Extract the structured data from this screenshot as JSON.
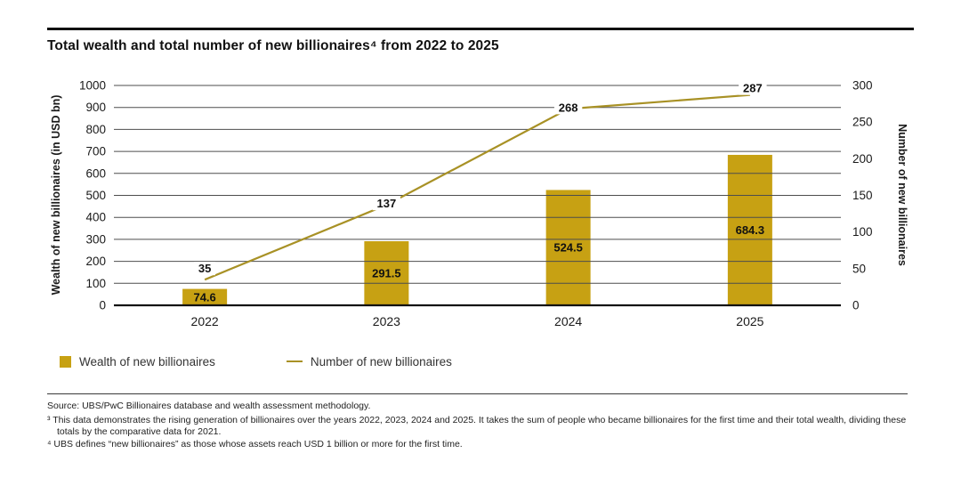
{
  "chart_data": {
    "type": "bar",
    "title": "Total wealth and total number of new billionaires⁴ from 2022 to 2025",
    "categories": [
      "2022",
      "2023",
      "2024",
      "2025"
    ],
    "series": [
      {
        "name": "Wealth of new billionaires",
        "type": "bar",
        "axis": "left",
        "values": [
          74.6,
          291.5,
          524.5,
          684.3
        ],
        "labels": [
          "74.6",
          "291.5",
          "524.5",
          "684.3"
        ],
        "color": "#C7A113"
      },
      {
        "name": "Number of new billionaires",
        "type": "line",
        "axis": "right",
        "values": [
          35,
          137,
          268,
          287
        ],
        "labels": [
          "35",
          "137",
          "268",
          "287"
        ],
        "color": "#A89125"
      }
    ],
    "left_axis": {
      "label": "Wealth of new billionaires (in USD bn)",
      "min": 0,
      "max": 1000,
      "step": 100
    },
    "right_axis": {
      "label": "Number of new billionaires",
      "min": 0,
      "max": 300,
      "step": 50
    },
    "grid": true,
    "legend_position": "bottom-left"
  },
  "legend": {
    "items": [
      {
        "label": "Wealth of new billionaires",
        "swatch": "square",
        "color": "#C7A113"
      },
      {
        "label": "Number of new billionaires",
        "swatch": "line",
        "color": "#A89125"
      }
    ]
  },
  "footer": {
    "source": "Source: UBS/PwC Billionaires database and wealth assessment methodology.",
    "footnote3": "³ This data demonstrates the rising generation of billionaires over the years 2022, 2023, 2024 and 2025. It takes the sum of people who became billionaires for the first time and their total wealth, dividing these totals by the comparative data for 2021.",
    "footnote4": "⁴ UBS defines “new billionaires” as those whose assets reach USD 1 billion or more for the first time."
  }
}
